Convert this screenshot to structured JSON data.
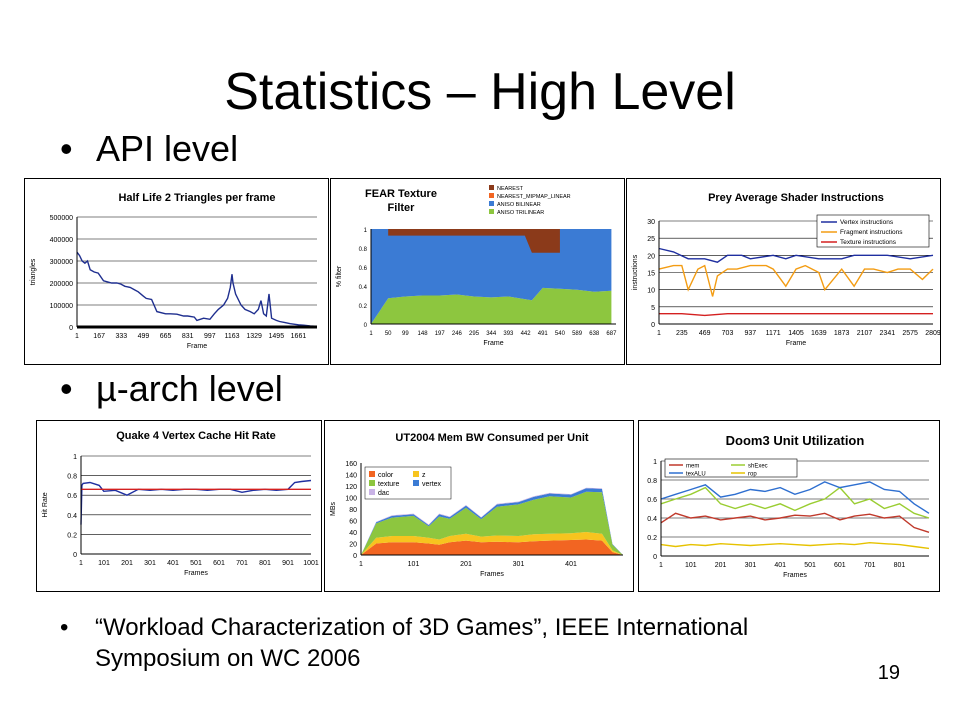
{
  "slide": {
    "title": "Statistics – High Level",
    "bullet1": "API level",
    "bullet2": "µ-arch level",
    "bullet_symbol": "•",
    "reference": "“Workload Characterization of 3D Games”, IEEE International Symposium on WC 2006",
    "page_number": "19"
  },
  "chart_data": [
    {
      "id": "hl2",
      "type": "line",
      "title": "Half Life 2 Triangles per frame",
      "xlabel": "Frame",
      "ylabel": "triangles",
      "xlim": [
        1,
        1800
      ],
      "ylim": [
        0,
        500000
      ],
      "yticks": [
        "0",
        "100000",
        "200000",
        "300000",
        "400000",
        "500000"
      ],
      "xticks": [
        "1",
        "167",
        "333",
        "499",
        "665",
        "831",
        "997",
        "1163",
        "1329",
        "1495",
        "1661"
      ],
      "grid": true,
      "series": [
        {
          "color": "#1f2f8f",
          "x": [
            1,
            20,
            40,
            60,
            80,
            100,
            130,
            160,
            200,
            230,
            260,
            300,
            330,
            360,
            400,
            430,
            460,
            499,
            520,
            560,
            600,
            665,
            700,
            750,
            800,
            831,
            880,
            900,
            950,
            997,
            1030,
            1060,
            1100,
            1130,
            1150,
            1163,
            1170,
            1190,
            1230,
            1260,
            1300,
            1329,
            1360,
            1380,
            1400,
            1420,
            1440,
            1460,
            1495,
            1520,
            1560,
            1600,
            1661,
            1700,
            1750,
            1800
          ],
          "y": [
            340000,
            325000,
            300000,
            290000,
            300000,
            260000,
            250000,
            245000,
            210000,
            205000,
            200000,
            200000,
            195000,
            185000,
            180000,
            170000,
            160000,
            140000,
            130000,
            125000,
            70000,
            60000,
            60000,
            58000,
            50000,
            50000,
            45000,
            30000,
            40000,
            35000,
            60000,
            80000,
            100000,
            130000,
            180000,
            240000,
            200000,
            150000,
            100000,
            80000,
            70000,
            60000,
            80000,
            120000,
            60000,
            50000,
            150000,
            40000,
            30000,
            25000,
            20000,
            15000,
            10000,
            8000,
            5000,
            3000
          ]
        }
      ]
    },
    {
      "id": "fear",
      "type": "area",
      "title": "FEAR Texture Filter",
      "xlabel": "Frame",
      "ylabel": "% filter",
      "xlim": [
        1,
        700
      ],
      "ylim": [
        0,
        1
      ],
      "yticks": [
        "0",
        "0.2",
        "0.4",
        "0.6",
        "0.8",
        "1"
      ],
      "xticks": [
        "1",
        "50",
        "99",
        "148",
        "197",
        "246",
        "295",
        "344",
        "393",
        "442",
        "491",
        "540",
        "589",
        "638",
        "687"
      ],
      "legend": [
        "NEAREST",
        "NEAREST_MIPMAP_LINEAR",
        "ANISO BILINEAR",
        "ANISO TRILINEAR"
      ],
      "colors": [
        "#8b3a1a",
        "#f26522",
        "#3b7bd4",
        "#8dc63f"
      ],
      "x": [
        1,
        50,
        99,
        148,
        197,
        246,
        295,
        344,
        393,
        442,
        460,
        491,
        540,
        589,
        638,
        687
      ],
      "series": [
        {
          "name": "ANISO TRILINEAR",
          "values": [
            0,
            0.27,
            0.29,
            0.3,
            0.3,
            0.31,
            0.29,
            0.28,
            0.29,
            0.26,
            0.25,
            0.38,
            0.37,
            0.36,
            0.34,
            0.35
          ]
        },
        {
          "name": "ANISO BILINEAR",
          "values": [
            1,
            0.73,
            0.71,
            0.7,
            0.7,
            0.69,
            0.71,
            0.72,
            0.71,
            0.74,
            0.75,
            0.62,
            0.63,
            0.64,
            0.66,
            0.65
          ]
        },
        {
          "name": "NEAREST_MIPMAP_LINEAR",
          "values": [
            0,
            0,
            0,
            0,
            0,
            0,
            0,
            0,
            0,
            0,
            0,
            0,
            0,
            0,
            0,
            0
          ]
        },
        {
          "name": "NEAREST",
          "values": [
            0,
            0,
            0,
            0,
            0,
            0,
            0,
            0,
            0,
            0,
            0,
            0,
            0,
            0,
            0,
            0
          ]
        }
      ]
    },
    {
      "id": "prey",
      "type": "line",
      "title": "Prey Average Shader Instructions",
      "xlabel": "Frame",
      "ylabel": "instructions",
      "xlim": [
        1,
        2809
      ],
      "ylim": [
        0,
        30
      ],
      "yticks": [
        "0",
        "5",
        "10",
        "15",
        "20",
        "25",
        "30"
      ],
      "xticks": [
        "1",
        "235",
        "469",
        "703",
        "937",
        "1171",
        "1405",
        "1639",
        "1873",
        "2107",
        "2341",
        "2575",
        "2809"
      ],
      "grid": true,
      "legend_position": "top-right",
      "series": [
        {
          "name": "Vertex instructions",
          "color": "#1f2fa0",
          "x": [
            1,
            150,
            300,
            469,
            600,
            703,
            850,
            937,
            1171,
            1300,
            1405,
            1639,
            1873,
            2000,
            2107,
            2341,
            2575,
            2809
          ],
          "y": [
            22,
            21,
            19,
            19,
            18,
            20,
            20,
            19,
            20,
            19,
            20,
            19,
            19,
            20,
            20,
            20,
            19,
            20
          ]
        },
        {
          "name": "Fragment instructions",
          "color": "#f39c12",
          "x": [
            1,
            150,
            235,
            300,
            400,
            469,
            550,
            600,
            703,
            800,
            937,
            1100,
            1171,
            1300,
            1405,
            1500,
            1639,
            1700,
            1873,
            2000,
            2107,
            2200,
            2341,
            2450,
            2575,
            2700,
            2809
          ],
          "y": [
            16,
            17,
            17,
            10,
            16,
            17,
            8,
            14,
            16,
            16,
            17,
            17,
            16,
            11,
            16,
            17,
            15,
            10,
            16,
            11,
            16,
            16,
            15,
            16,
            16,
            13,
            16
          ]
        },
        {
          "name": "Texture instructions",
          "color": "#d42020",
          "x": [
            1,
            235,
            469,
            703,
            937,
            1171,
            1405,
            1639,
            1873,
            2107,
            2341,
            2575,
            2809
          ],
          "y": [
            3,
            3,
            2.5,
            3,
            3,
            3,
            3,
            3,
            3,
            3,
            3,
            3,
            3
          ]
        }
      ]
    },
    {
      "id": "quake4",
      "type": "line",
      "title": "Quake 4 Vertex Cache Hit Rate",
      "xlabel": "Frames",
      "ylabel": "Hit Rate",
      "xlim": [
        1,
        1001
      ],
      "ylim": [
        0,
        1
      ],
      "yticks": [
        "0",
        "0.2",
        "0.4",
        "0.6",
        "0.8",
        "1"
      ],
      "xticks": [
        "1",
        "101",
        "201",
        "301",
        "401",
        "501",
        "601",
        "701",
        "801",
        "901",
        "1001"
      ],
      "grid": true,
      "series": [
        {
          "color": "#1f2fa0",
          "x": [
            1,
            5,
            10,
            40,
            80,
            100,
            150,
            201,
            250,
            301,
            350,
            401,
            450,
            501,
            550,
            601,
            650,
            701,
            750,
            801,
            850,
            901,
            930,
            960,
            1001
          ],
          "y": [
            0.3,
            0.7,
            0.72,
            0.73,
            0.7,
            0.64,
            0.65,
            0.6,
            0.66,
            0.65,
            0.66,
            0.65,
            0.66,
            0.66,
            0.65,
            0.66,
            0.66,
            0.63,
            0.65,
            0.66,
            0.65,
            0.66,
            0.73,
            0.74,
            0.75
          ]
        },
        {
          "color": "#d42020",
          "x": [
            1,
            1001
          ],
          "y": [
            0.66,
            0.66
          ]
        }
      ]
    },
    {
      "id": "ut2004",
      "type": "area",
      "title": "UT2004 Mem BW Consumed per Unit",
      "xlabel": "Frames",
      "ylabel": "MBs",
      "xlim": [
        1,
        500
      ],
      "ylim": [
        0,
        160
      ],
      "yticks": [
        "0",
        "20",
        "40",
        "60",
        "80",
        "100",
        "120",
        "140",
        "160"
      ],
      "xticks": [
        "1",
        "101",
        "201",
        "301",
        "401"
      ],
      "legend": [
        "color",
        "z",
        "texture",
        "vertex",
        "dac"
      ],
      "colors": [
        "#f26522",
        "#f7c41f",
        "#8dc63f",
        "#3b7bd4",
        "#c9b3e6"
      ],
      "x": [
        1,
        30,
        60,
        101,
        130,
        150,
        170,
        201,
        230,
        260,
        301,
        330,
        360,
        401,
        430,
        460,
        480,
        500
      ],
      "series": [
        {
          "name": "color",
          "values": [
            0,
            20,
            22,
            22,
            20,
            18,
            22,
            25,
            22,
            23,
            22,
            24,
            25,
            26,
            27,
            25,
            5,
            0
          ]
        },
        {
          "name": "z",
          "values": [
            0,
            10,
            11,
            11,
            10,
            9,
            11,
            12,
            10,
            11,
            11,
            12,
            12,
            12,
            13,
            12,
            3,
            0
          ]
        },
        {
          "name": "texture",
          "values": [
            0,
            25,
            32,
            35,
            20,
            40,
            30,
            45,
            30,
            50,
            55,
            60,
            65,
            62,
            70,
            72,
            10,
            0
          ]
        },
        {
          "name": "vertex",
          "values": [
            0,
            2,
            3,
            3,
            2,
            4,
            3,
            4,
            3,
            4,
            4,
            5,
            5,
            5,
            6,
            6,
            1,
            0
          ]
        },
        {
          "name": "dac",
          "values": [
            0,
            1,
            1,
            1,
            1,
            1,
            1,
            1,
            1,
            1,
            1,
            1,
            1,
            1,
            1,
            1,
            0,
            0
          ]
        }
      ]
    },
    {
      "id": "doom3",
      "type": "line",
      "title": "Doom3 Unit Utilization",
      "xlabel": "Frames",
      "xlim": [
        1,
        900
      ],
      "ylim": [
        0,
        1
      ],
      "yticks": [
        "0",
        "0.2",
        "0.4",
        "0.6",
        "0.8",
        "1"
      ],
      "xticks": [
        "1",
        "101",
        "201",
        "301",
        "401",
        "501",
        "601",
        "701",
        "801"
      ],
      "grid": true,
      "legend_position": "top-left",
      "series": [
        {
          "name": "mem",
          "color": "#c0392b",
          "x": [
            1,
            50,
            101,
            150,
            201,
            250,
            301,
            350,
            401,
            450,
            501,
            550,
            601,
            650,
            701,
            750,
            801,
            850,
            900
          ],
          "y": [
            0.35,
            0.45,
            0.4,
            0.42,
            0.38,
            0.4,
            0.42,
            0.38,
            0.4,
            0.43,
            0.42,
            0.45,
            0.38,
            0.42,
            0.44,
            0.4,
            0.42,
            0.3,
            0.25
          ]
        },
        {
          "name": "shExec",
          "color": "#9acd32",
          "x": [
            1,
            50,
            101,
            150,
            201,
            250,
            301,
            350,
            401,
            450,
            501,
            550,
            601,
            650,
            701,
            750,
            801,
            850,
            900
          ],
          "y": [
            0.55,
            0.6,
            0.65,
            0.72,
            0.55,
            0.5,
            0.55,
            0.5,
            0.55,
            0.48,
            0.55,
            0.6,
            0.72,
            0.55,
            0.6,
            0.5,
            0.55,
            0.45,
            0.4
          ]
        },
        {
          "name": "texALU",
          "color": "#2e6fd0",
          "x": [
            1,
            50,
            101,
            150,
            201,
            250,
            301,
            350,
            401,
            450,
            501,
            550,
            601,
            650,
            701,
            750,
            801,
            850,
            900
          ],
          "y": [
            0.6,
            0.65,
            0.7,
            0.75,
            0.62,
            0.65,
            0.7,
            0.68,
            0.72,
            0.65,
            0.7,
            0.78,
            0.72,
            0.75,
            0.78,
            0.7,
            0.68,
            0.55,
            0.45
          ]
        },
        {
          "name": "rop",
          "color": "#e6c200",
          "x": [
            1,
            50,
            101,
            150,
            201,
            250,
            301,
            350,
            401,
            450,
            501,
            550,
            601,
            650,
            701,
            750,
            801,
            850,
            900
          ],
          "y": [
            0.12,
            0.1,
            0.12,
            0.11,
            0.13,
            0.12,
            0.11,
            0.12,
            0.13,
            0.12,
            0.11,
            0.12,
            0.13,
            0.12,
            0.14,
            0.13,
            0.12,
            0.1,
            0.08
          ]
        }
      ]
    }
  ]
}
